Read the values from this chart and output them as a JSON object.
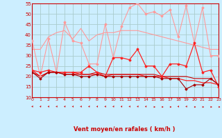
{
  "xlabel": "Vent moyen/en rafales ( km/h )",
  "xlim": [
    0,
    23
  ],
  "ylim": [
    10,
    55
  ],
  "yticks": [
    10,
    15,
    20,
    25,
    30,
    35,
    40,
    45,
    50,
    55
  ],
  "xticks": [
    0,
    1,
    2,
    3,
    4,
    5,
    6,
    7,
    8,
    9,
    10,
    11,
    12,
    13,
    14,
    15,
    16,
    17,
    18,
    19,
    20,
    21,
    22,
    23
  ],
  "background_color": "#cceeff",
  "grid_color": "#aacccc",
  "series": [
    {
      "y": [
        37,
        20,
        38,
        22,
        46,
        37,
        36,
        26,
        26,
        45,
        29,
        44,
        53,
        55,
        50,
        51,
        49,
        52,
        39,
        54,
        36,
        53,
        30,
        30
      ],
      "color": "#ff9999",
      "lw": 0.8,
      "marker": "D",
      "ms": 1.5
    },
    {
      "y": [
        33,
        33,
        39,
        41,
        42,
        38,
        43,
        37,
        40,
        41,
        41,
        42,
        42,
        42,
        41,
        40,
        39,
        38,
        37,
        36,
        35,
        34,
        33,
        33
      ],
      "color": "#ff9999",
      "lw": 0.8,
      "marker": null,
      "ms": 0
    },
    {
      "y": [
        23,
        22,
        23,
        22,
        22,
        22,
        22,
        25,
        22,
        20,
        29,
        29,
        28,
        33,
        25,
        25,
        20,
        26,
        26,
        25,
        36,
        22,
        23,
        15
      ],
      "color": "#ff2222",
      "lw": 0.9,
      "marker": "D",
      "ms": 1.5
    },
    {
      "y": [
        23,
        20,
        22,
        22,
        22,
        22,
        21,
        21,
        21,
        20,
        21,
        21,
        21,
        21,
        20,
        20,
        20,
        19,
        19,
        18,
        18,
        17,
        17,
        16
      ],
      "color": "#ff2222",
      "lw": 0.9,
      "marker": null,
      "ms": 0
    },
    {
      "y": [
        22,
        20,
        22,
        22,
        21,
        21,
        21,
        21,
        22,
        21,
        21,
        21,
        21,
        21,
        21,
        21,
        20,
        20,
        20,
        20,
        19,
        19,
        19,
        16
      ],
      "color": "#cc0000",
      "lw": 0.8,
      "marker": null,
      "ms": 0
    },
    {
      "y": [
        22,
        19,
        22,
        22,
        21,
        21,
        20,
        20,
        21,
        20,
        20,
        20,
        20,
        20,
        20,
        20,
        19,
        19,
        19,
        14,
        16,
        16,
        19,
        16
      ],
      "color": "#aa0000",
      "lw": 0.8,
      "marker": "D",
      "ms": 1.5
    }
  ],
  "arrow_angles": [
    45,
    45,
    45,
    45,
    45,
    45,
    45,
    45,
    45,
    45,
    45,
    45,
    45,
    45,
    45,
    0,
    0,
    0,
    45,
    45,
    0,
    0,
    0,
    0
  ]
}
